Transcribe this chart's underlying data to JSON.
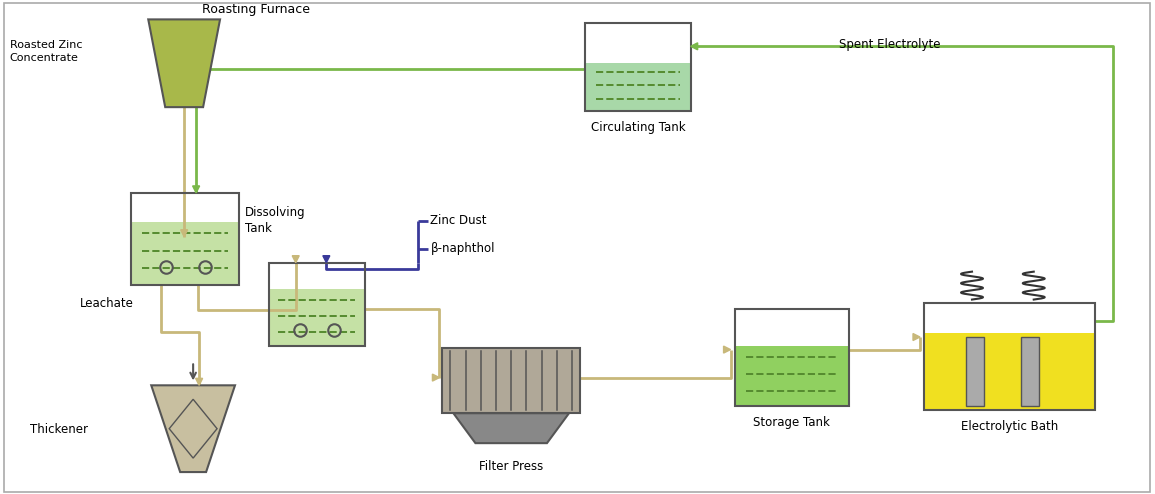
{
  "background_color": "#ffffff",
  "colors": {
    "green_liquid": "#8bc34a",
    "green_light": "#c5e1a5",
    "green_dark": "#558b2f",
    "green_line": "#7ab84a",
    "tan_arrow": "#c8b87a",
    "yellow_liquid": "#f0e020",
    "dark_gray": "#555555",
    "blue_arrow": "#3a3a9a",
    "furnace_fill": "#a8b84a",
    "thickener_fill": "#c8bfa0",
    "fp_fill": "#b0a898",
    "fp_dark": "#888888",
    "gray_electrode": "#aaaaaa",
    "storage_liquid": "#90d060",
    "circ_liquid": "#a8d8a8"
  },
  "labels": {
    "roasting_furnace": "Roasting Furnace",
    "roasted_zinc": "Roasted Zinc\nConcentrate",
    "dissolving_tank": "Dissolving\nTank",
    "leachate": "Leachate",
    "thickener": "Thickener",
    "filter_press": "Filter Press",
    "storage_tank": "Storage Tank",
    "electrolytic_bath": "Electrolytic Bath",
    "circulating_tank": "Circulating Tank",
    "spent_electrolyte": "Spent Electrolyte",
    "zinc_dust": "Zinc Dust",
    "beta_naphthol": "β-naphthol"
  }
}
